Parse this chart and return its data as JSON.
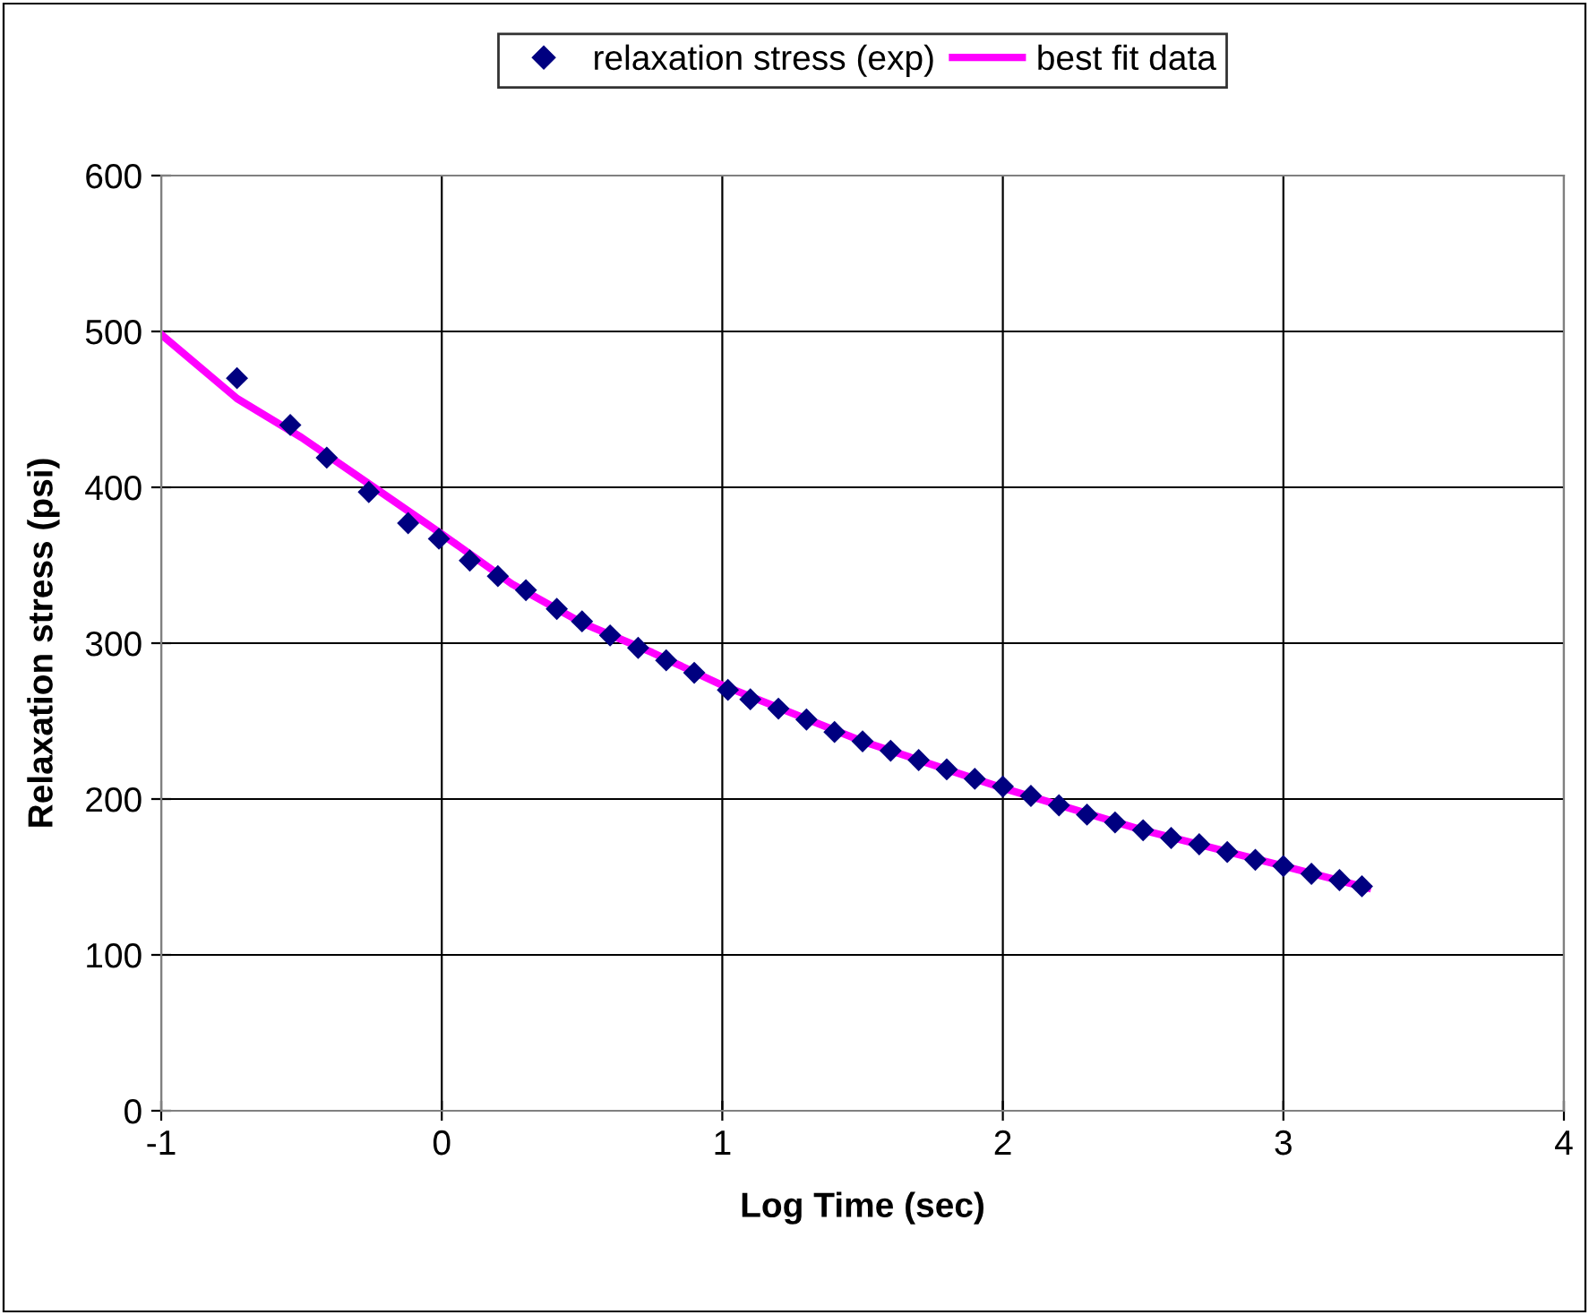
{
  "chart_data": {
    "type": "scatter",
    "xlabel": "Log Time (sec)",
    "ylabel": "Relaxation stress (psi)",
    "xlim": [
      -1,
      4
    ],
    "xticks": [
      -1,
      0,
      1,
      2,
      3,
      4
    ],
    "ylim": [
      0,
      600
    ],
    "yticks": [
      0,
      100,
      200,
      300,
      400,
      500,
      600
    ],
    "grid": true,
    "legend": "top",
    "marker": "diamond",
    "series": [
      {
        "name": "relaxation stress (exp)",
        "color": "#000080",
        "x": [
          -0.73,
          -0.54,
          -0.41,
          -0.26,
          -0.12,
          -0.01,
          0.1,
          0.2,
          0.3,
          0.41,
          0.5,
          0.6,
          0.7,
          0.8,
          0.9,
          1.02,
          1.1,
          1.2,
          1.3,
          1.4,
          1.5,
          1.6,
          1.7,
          1.8,
          1.9,
          2.0,
          2.1,
          2.2,
          2.3,
          2.4,
          2.5,
          2.6,
          2.7,
          2.8,
          2.9,
          3.0,
          3.1,
          3.2,
          3.28
        ],
        "values": [
          470,
          440,
          419,
          397,
          377,
          367,
          353,
          343,
          334,
          322,
          314,
          305,
          297,
          289,
          281,
          270,
          264,
          258,
          251,
          243,
          237,
          231,
          225,
          219,
          213,
          208,
          202,
          196,
          190,
          185,
          180,
          175,
          171,
          166,
          161,
          157,
          152,
          148,
          144
        ]
      },
      {
        "name": "best fit data",
        "color": "#ff00ff",
        "type": "line",
        "marker": "none",
        "line_style": "solid",
        "x": [
          -1,
          -0.73,
          -0.5,
          -0.25,
          0,
          0.25,
          0.5,
          0.75,
          1,
          1.5,
          2,
          2.5,
          3,
          3.3
        ],
        "values": [
          498,
          457,
          432,
          401,
          370,
          338,
          313,
          294,
          273,
          237,
          207,
          180,
          157,
          143
        ]
      }
    ]
  }
}
